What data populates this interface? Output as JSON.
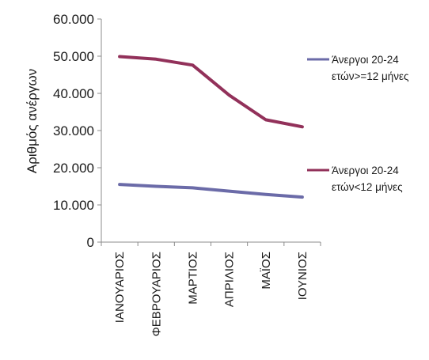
{
  "chart_data": {
    "type": "line",
    "categories": [
      "ΙΑΝΟΥΑΡΙΟΣ",
      "ΦΕΒΡΟΥΑΡΙΟΣ",
      "ΜΑΡΤΙΟΣ",
      "ΑΠΡΙΛΙΟΣ",
      "ΜΑΪΟΣ",
      "ΙΟΥΝΙΟΣ"
    ],
    "series": [
      {
        "name": "Άνεργοι 20-24 ετών>=12 μήνες",
        "legend_lines": [
          "Άνεργοι 20-24",
          "ετών>=12 μήνες"
        ],
        "color": "#6b6ba8",
        "values": [
          15500,
          15000,
          14600,
          13700,
          12800,
          12100
        ]
      },
      {
        "name": "Άνεργοι 20-24 ετών<12 μήνες",
        "legend_lines": [
          "Άνεργοι 20-24",
          "ετών<12 μήνες"
        ],
        "color": "#92315a",
        "values": [
          49900,
          49200,
          47600,
          39500,
          32900,
          31000
        ]
      }
    ],
    "ylabel": "Αριθμός ανέργων",
    "xlabel": "",
    "ylim": [
      0,
      60000
    ],
    "yticks": [
      0,
      10000,
      20000,
      30000,
      40000,
      50000,
      60000
    ],
    "ytick_labels": [
      "0",
      "10.000",
      "20.000",
      "30.000",
      "40.000",
      "50.000",
      "60.000"
    ],
    "legend": "right",
    "grid": false
  }
}
